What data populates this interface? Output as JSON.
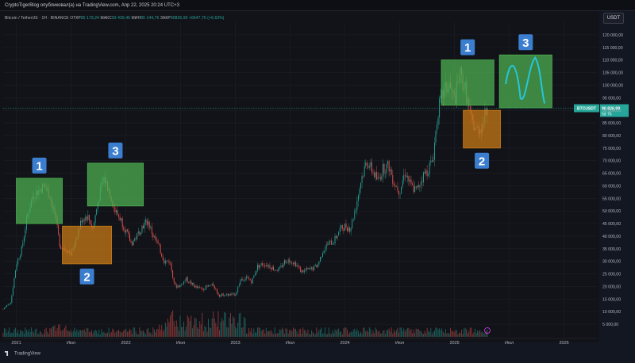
{
  "header": {
    "publisher_line": "CryptoTigerBlog опубликовал(а) на TradingView.com, Апр 22, 2025 20:24 UTC+3"
  },
  "legend": {
    "symbol": "Bitcoin / TetherUS · 1Н · BINANCE",
    "open_label": "ОТКР",
    "open_value": "85 179,24",
    "high_label": "МАКС",
    "high_value": "93 439,46",
    "low_label": "МИН",
    "low_value": "85 144,76",
    "close_label": "ЗАКР",
    "close_value": "90826,99",
    "change": "+5647,75 (+6,63%)"
  },
  "currency_button": "USDT",
  "price_tag": {
    "symbol": "BTCUSDT",
    "price": "90 826,99",
    "countdown": "5d 7h"
  },
  "footer": {
    "brand": "TradingView"
  },
  "colors": {
    "up": "#26a69a",
    "down": "#ef5350",
    "green_box": "#4caf50",
    "orange_box": "#c77a16",
    "badge": "#3b7ecf",
    "projection": "#26c6da"
  },
  "chart_data": {
    "type": "candlestick",
    "ylim": [
      0,
      125000
    ],
    "y_ticks": [
      5000,
      10000,
      15000,
      20000,
      25000,
      30000,
      35000,
      40000,
      45000,
      50000,
      55000,
      60000,
      65000,
      70000,
      75000,
      80000,
      85000,
      90000,
      95000,
      100000,
      105000,
      110000,
      115000,
      120000
    ],
    "y_tick_labels": [
      "5 000,00",
      "10 000,00",
      "15 000,00",
      "20 000,00",
      "25 000,00",
      "30 000,00",
      "35 000,00",
      "40 000,00",
      "45 000,00",
      "50 000,00",
      "55 000,00",
      "60 000,00",
      "65 000,00",
      "70 000,00",
      "75 000,00",
      "80 000,00",
      "85 000,00",
      "90 000,00",
      "95 000,00",
      "100 000,00",
      "105 000,00",
      "110 000,00",
      "115 000,00",
      "120 000,00"
    ],
    "x_ticks": [
      {
        "label": "2021",
        "t": 2021.0
      },
      {
        "label": "Июл",
        "t": 2021.5
      },
      {
        "label": "2022",
        "t": 2022.0
      },
      {
        "label": "Июл",
        "t": 2022.5
      },
      {
        "label": "2023",
        "t": 2023.0
      },
      {
        "label": "Июл",
        "t": 2023.5
      },
      {
        "label": "2024",
        "t": 2024.0
      },
      {
        "label": "Июл",
        "t": 2024.5
      },
      {
        "label": "2025",
        "t": 2025.0
      },
      {
        "label": "Июл",
        "t": 2025.5
      },
      {
        "label": "2026",
        "t": 2026.0
      }
    ],
    "xlim": [
      2020.88,
      2026.3
    ],
    "price_path": [
      [
        2020.88,
        11000
      ],
      [
        2020.95,
        14000
      ],
      [
        2021.0,
        29000
      ],
      [
        2021.05,
        35000
      ],
      [
        2021.1,
        48000
      ],
      [
        2021.15,
        56000
      ],
      [
        2021.2,
        58000
      ],
      [
        2021.25,
        60000
      ],
      [
        2021.3,
        57000
      ],
      [
        2021.35,
        49000
      ],
      [
        2021.4,
        36000
      ],
      [
        2021.45,
        35000
      ],
      [
        2021.5,
        33000
      ],
      [
        2021.55,
        40000
      ],
      [
        2021.6,
        47000
      ],
      [
        2021.65,
        48000
      ],
      [
        2021.7,
        43000
      ],
      [
        2021.75,
        55000
      ],
      [
        2021.8,
        63000
      ],
      [
        2021.85,
        58000
      ],
      [
        2021.9,
        50000
      ],
      [
        2021.95,
        47000
      ],
      [
        2022.0,
        42000
      ],
      [
        2022.05,
        37000
      ],
      [
        2022.1,
        40000
      ],
      [
        2022.15,
        44000
      ],
      [
        2022.2,
        46000
      ],
      [
        2022.25,
        40000
      ],
      [
        2022.3,
        36000
      ],
      [
        2022.35,
        30000
      ],
      [
        2022.4,
        30000
      ],
      [
        2022.45,
        20000
      ],
      [
        2022.5,
        20500
      ],
      [
        2022.55,
        23000
      ],
      [
        2022.6,
        21000
      ],
      [
        2022.65,
        19500
      ],
      [
        2022.7,
        19000
      ],
      [
        2022.75,
        20000
      ],
      [
        2022.8,
        20500
      ],
      [
        2022.85,
        16500
      ],
      [
        2022.9,
        16800
      ],
      [
        2022.95,
        16600
      ],
      [
        2023.0,
        17000
      ],
      [
        2023.05,
        23000
      ],
      [
        2023.1,
        23500
      ],
      [
        2023.15,
        22000
      ],
      [
        2023.2,
        28000
      ],
      [
        2023.25,
        29000
      ],
      [
        2023.3,
        28500
      ],
      [
        2023.35,
        27000
      ],
      [
        2023.4,
        26500
      ],
      [
        2023.45,
        30000
      ],
      [
        2023.5,
        30500
      ],
      [
        2023.55,
        29000
      ],
      [
        2023.6,
        26000
      ],
      [
        2023.65,
        26500
      ],
      [
        2023.7,
        27000
      ],
      [
        2023.75,
        28500
      ],
      [
        2023.8,
        34500
      ],
      [
        2023.85,
        37000
      ],
      [
        2023.9,
        38000
      ],
      [
        2023.95,
        42500
      ],
      [
        2024.0,
        44000
      ],
      [
        2024.05,
        43000
      ],
      [
        2024.1,
        52000
      ],
      [
        2024.15,
        63000
      ],
      [
        2024.2,
        70000
      ],
      [
        2024.25,
        66000
      ],
      [
        2024.3,
        62000
      ],
      [
        2024.35,
        67000
      ],
      [
        2024.4,
        68000
      ],
      [
        2024.45,
        61000
      ],
      [
        2024.5,
        58000
      ],
      [
        2024.55,
        66000
      ],
      [
        2024.6,
        60000
      ],
      [
        2024.65,
        58000
      ],
      [
        2024.7,
        63000
      ],
      [
        2024.75,
        66000
      ],
      [
        2024.8,
        70000
      ],
      [
        2024.85,
        90000
      ],
      [
        2024.9,
        97000
      ],
      [
        2024.95,
        100000
      ],
      [
        2025.0,
        94000
      ],
      [
        2025.05,
        104000
      ],
      [
        2025.1,
        98000
      ],
      [
        2025.15,
        86000
      ],
      [
        2025.2,
        82000
      ],
      [
        2025.25,
        84000
      ],
      [
        2025.3,
        90800
      ]
    ],
    "annotations": [
      {
        "label": "1",
        "kind": "green",
        "x0": 2021.0,
        "x1": 2021.42,
        "y0": 45000,
        "y1": 63000
      },
      {
        "label": "2",
        "kind": "orange",
        "x0": 2021.42,
        "x1": 2021.87,
        "y0": 29000,
        "y1": 44000
      },
      {
        "label": "3",
        "kind": "green",
        "x0": 2021.65,
        "x1": 2022.16,
        "y0": 52000,
        "y1": 69000
      },
      {
        "label": "1",
        "kind": "green",
        "x0": 2024.88,
        "x1": 2025.36,
        "y0": 92000,
        "y1": 110000
      },
      {
        "label": "2",
        "kind": "orange",
        "x0": 2025.08,
        "x1": 2025.42,
        "y0": 75000,
        "y1": 90000
      },
      {
        "label": "3",
        "kind": "green",
        "x0": 2025.41,
        "x1": 2025.89,
        "y0": 91000,
        "y1": 112000
      }
    ]
  }
}
